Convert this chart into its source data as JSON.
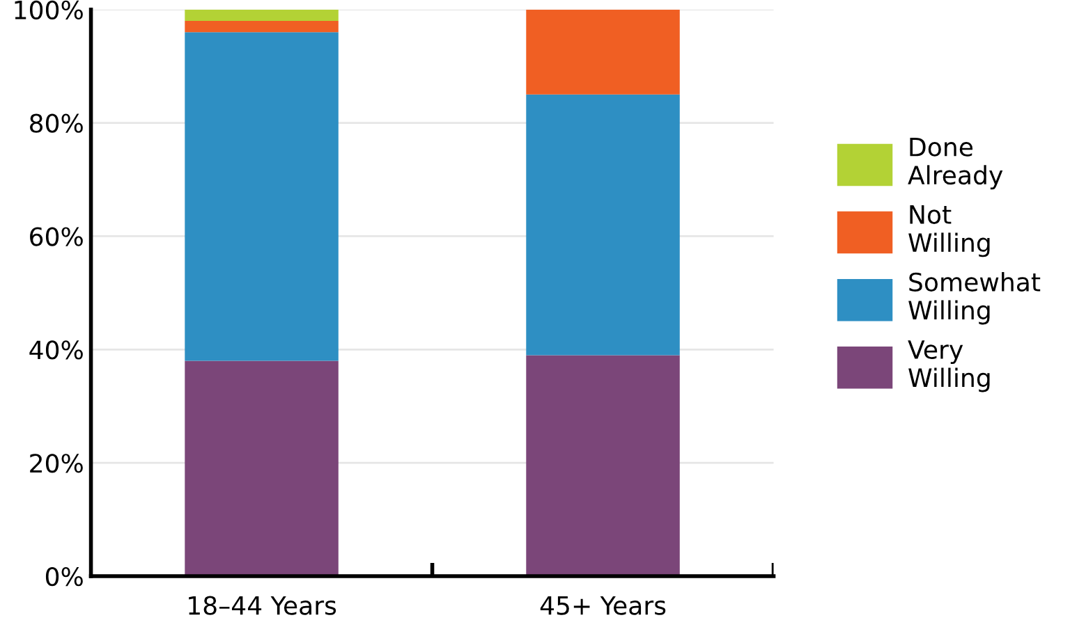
{
  "chart_data": {
    "type": "bar",
    "stacked": true,
    "categories": [
      "18–44 Years",
      "45+ Years"
    ],
    "series": [
      {
        "name": "Very\nWilling",
        "color": "#7b4679",
        "values": [
          38,
          39
        ]
      },
      {
        "name": "Somewhat\nWilling",
        "color": "#2e8fc3",
        "values": [
          58,
          46
        ]
      },
      {
        "name": "Not\nWilling",
        "color": "#f05f23",
        "values": [
          2,
          15
        ]
      },
      {
        "name": "Done\nAlready",
        "color": "#b3d235",
        "values": [
          2,
          0
        ]
      }
    ],
    "ylim": [
      0,
      100
    ],
    "yticks": [
      {
        "value": 0,
        "label": "0%"
      },
      {
        "value": 20,
        "label": "20%"
      },
      {
        "value": 40,
        "label": "40%"
      },
      {
        "value": 60,
        "label": "60%"
      },
      {
        "value": 80,
        "label": "80%"
      },
      {
        "value": 100,
        "label": "100%"
      }
    ],
    "grid": "y",
    "legend": "right"
  }
}
